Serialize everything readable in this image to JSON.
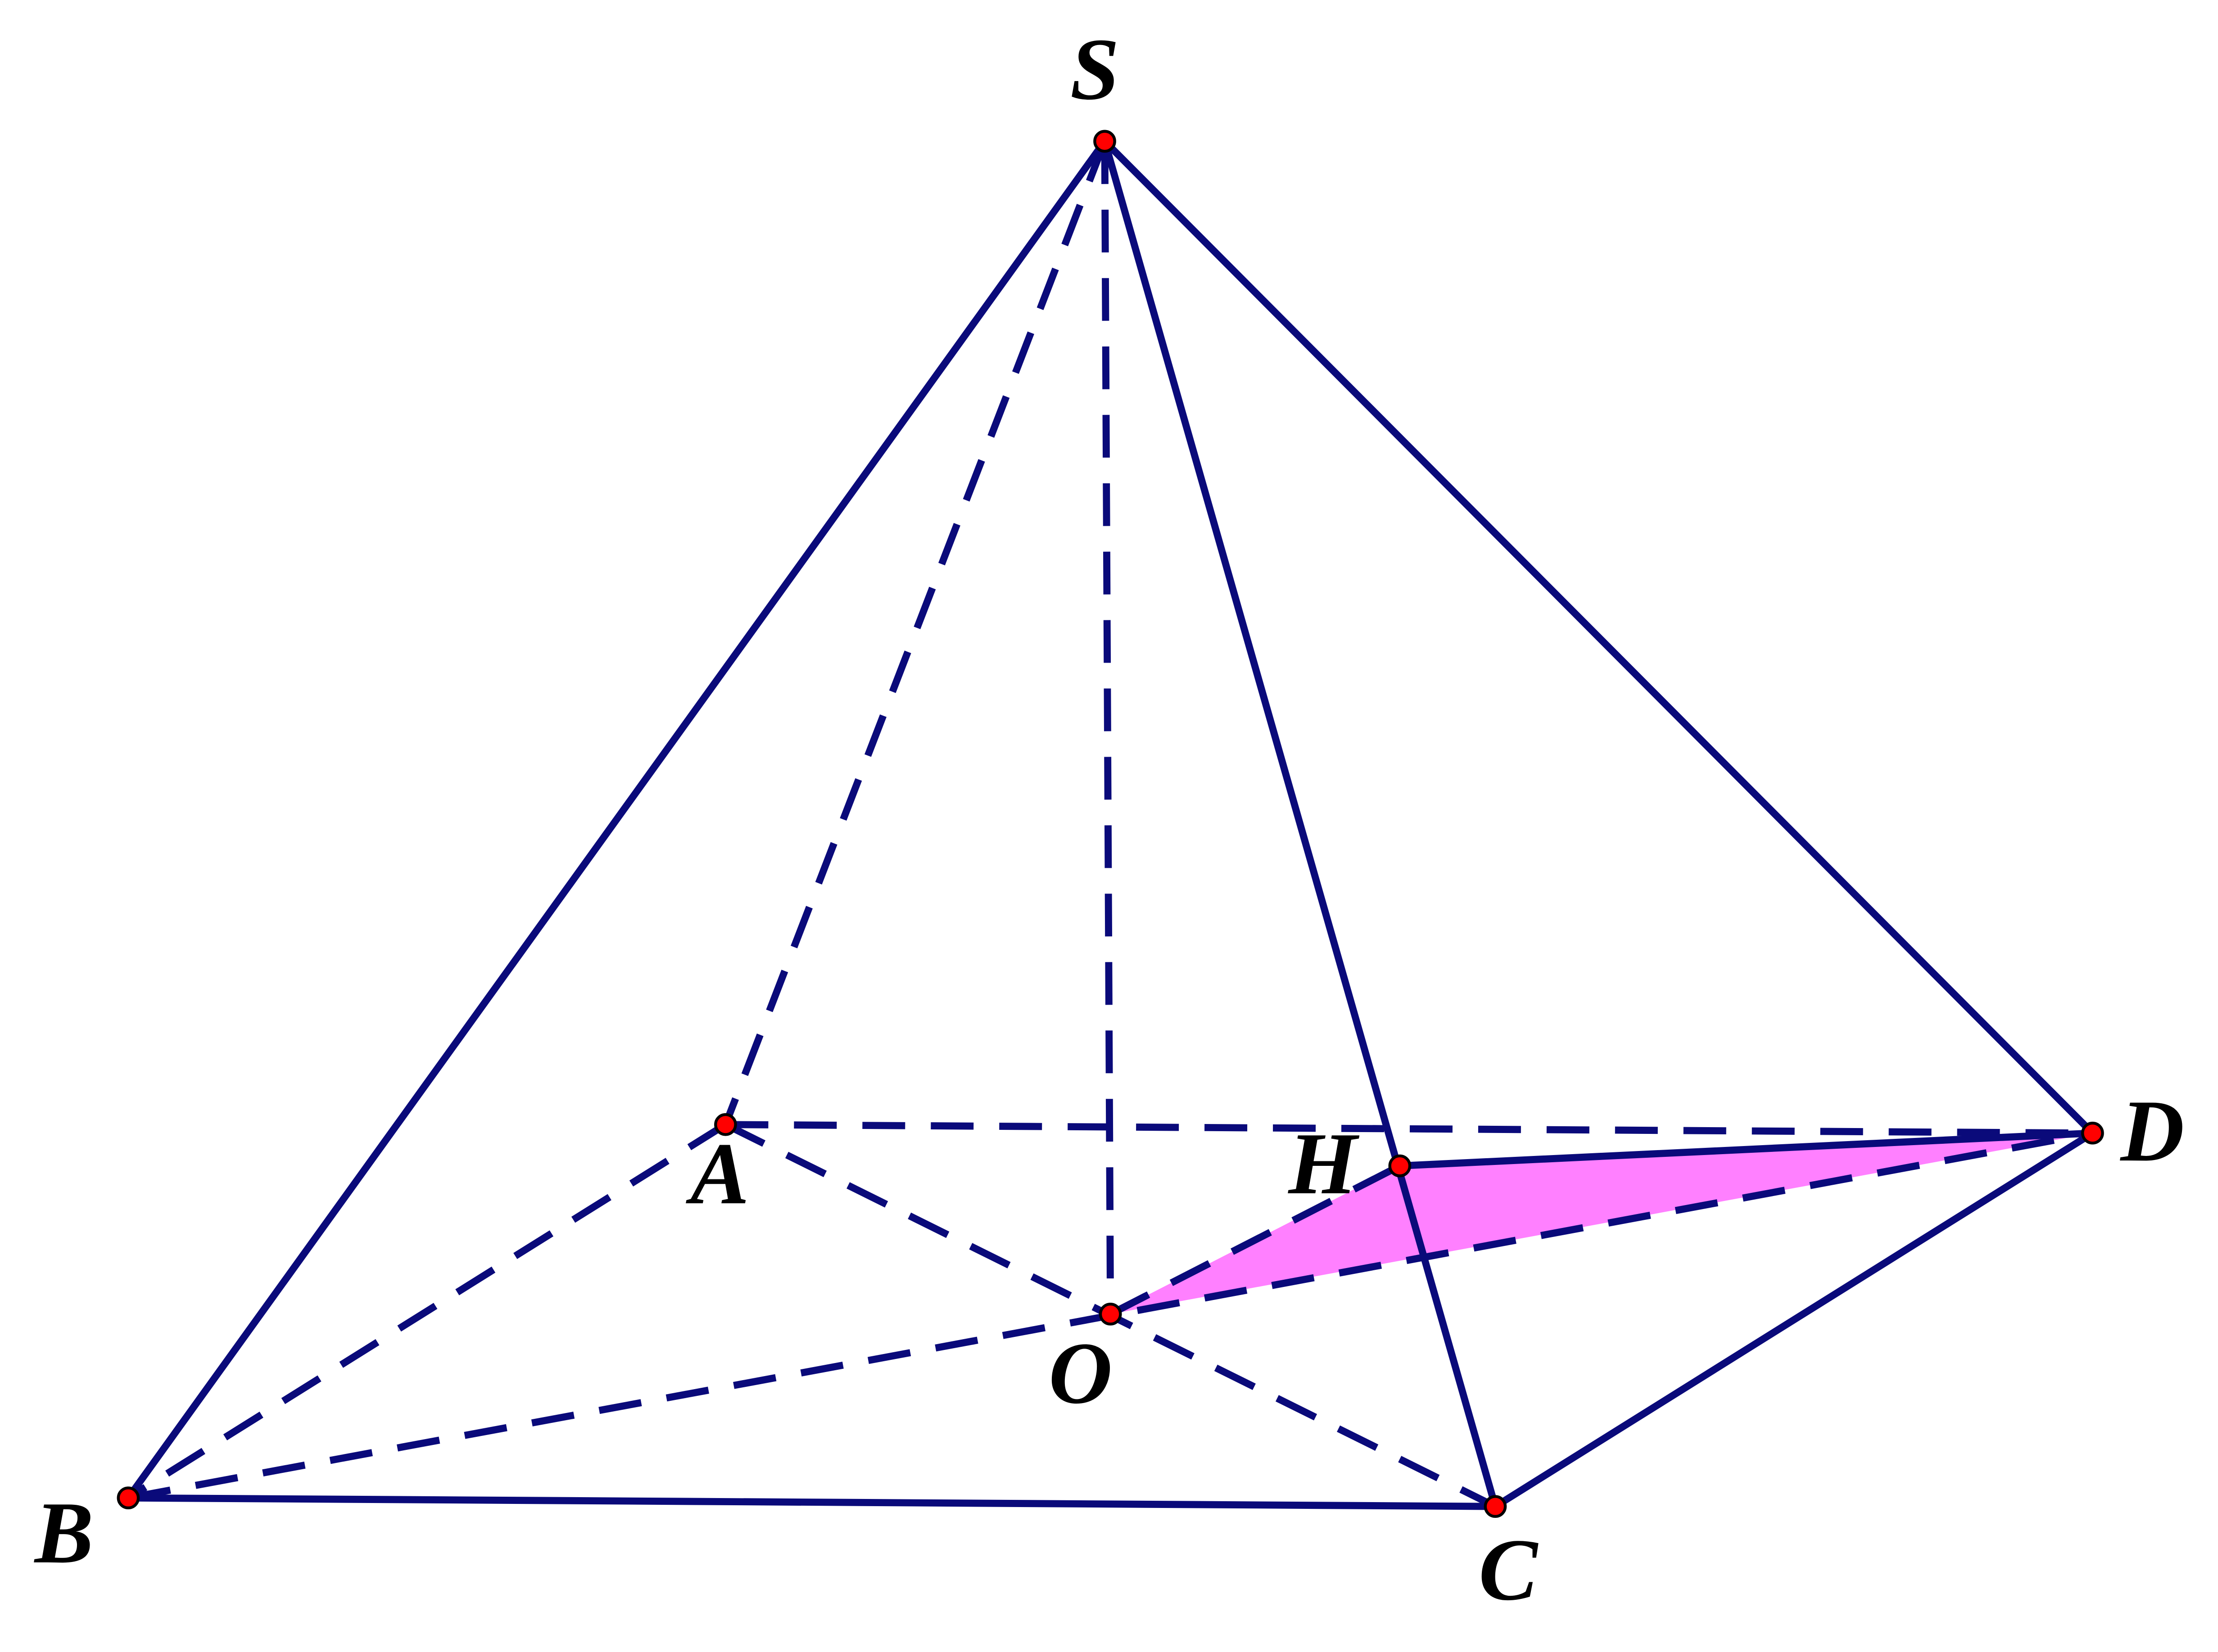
{
  "labels": {
    "S": "S",
    "A": "A",
    "B": "B",
    "C": "C",
    "D": "D",
    "H": "H",
    "O": "O"
  }
}
